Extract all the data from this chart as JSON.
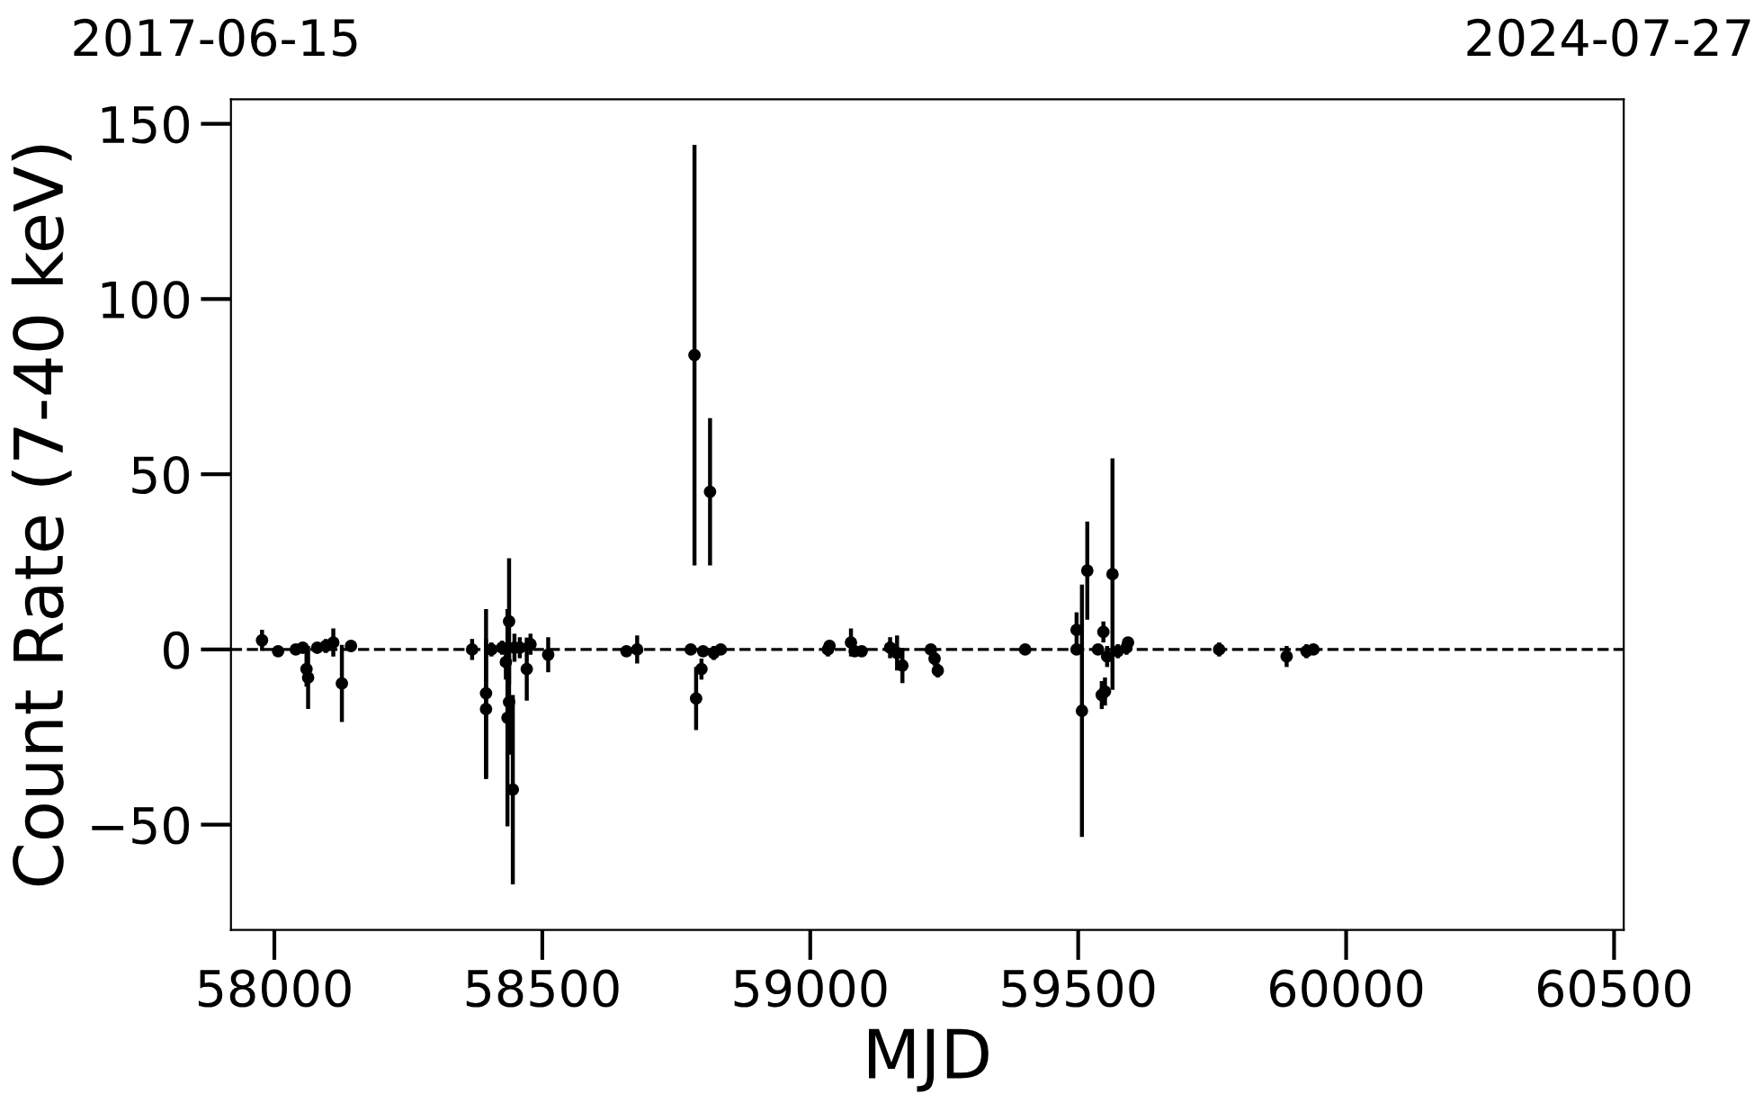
{
  "chart_data": {
    "type": "scatter",
    "xlabel": "MJD",
    "ylabel": "Count Rate (7-40 keV)",
    "xlim": [
      57919,
      60518
    ],
    "xticks": [
      58000,
      58500,
      59000,
      59500,
      60000,
      60500
    ],
    "ylim": [
      -80,
      157
    ],
    "yticks": [
      -50,
      0,
      50,
      100,
      150
    ],
    "annotations": [
      "2017-06-15",
      "2024-07-27"
    ],
    "marker": "circle",
    "grid": false,
    "ref_lines": [
      {
        "axis": "y",
        "value": 0,
        "label": null,
        "color": "#000000",
        "line_style": "dashed"
      }
    ],
    "series": [
      {
        "color": "#000000",
        "x": [
          57977,
          58007,
          58040,
          58053,
          58060,
          58063,
          58080,
          58096,
          58110,
          58126,
          58143,
          58369,
          58395,
          58395,
          58405,
          58425,
          58432,
          58435,
          58438,
          58445,
          58438,
          58448,
          58458,
          58471,
          58478,
          58511,
          58657,
          58677,
          58777,
          58784,
          58813,
          58787,
          58797,
          58800,
          58820,
          58833,
          59033,
          59036,
          59076,
          59083,
          59096,
          59149,
          59162,
          59172,
          59225,
          59232,
          59238,
          59401,
          59497,
          59497,
          59507,
          59517,
          59564,
          59547,
          59544,
          59550,
          59554,
          59537,
          59574,
          59590,
          59593,
          59763,
          59889,
          59926,
          59939
        ],
        "values": [
          2.6,
          -0.5,
          0,
          0.5,
          -5.6,
          -8,
          0.5,
          1,
          2,
          -9.7,
          1,
          0,
          -12.5,
          -17,
          0,
          0.5,
          -3.6,
          -19.5,
          8,
          -40,
          -15,
          0.5,
          0.5,
          -5.6,
          1.5,
          -1.5,
          -0.5,
          0,
          0,
          84,
          45,
          -14,
          -5.6,
          -0.5,
          -1,
          0,
          0,
          1,
          2,
          -0.5,
          -0.5,
          0.5,
          -1,
          -4.6,
          0,
          -2.6,
          -6,
          0,
          5.6,
          0,
          -17.5,
          22.5,
          21.5,
          5,
          -13,
          -12,
          -2,
          0,
          -0.5,
          0.5,
          2,
          0,
          -2,
          -0.5,
          0
        ],
        "errors": [
          3,
          1,
          1,
          1,
          5,
          9,
          1,
          2,
          4,
          11,
          1,
          3,
          24,
          20,
          2,
          2,
          5,
          31,
          18,
          27,
          15,
          4,
          3,
          9,
          3,
          5,
          1,
          4,
          1,
          60,
          21,
          9,
          3,
          1,
          2,
          1,
          2,
          1,
          4,
          1,
          1,
          3,
          5,
          5,
          1,
          2,
          2,
          1,
          5,
          1,
          36,
          14,
          33,
          3,
          4,
          4,
          3,
          1,
          2,
          2,
          1,
          2,
          3,
          2,
          1
        ]
      }
    ]
  }
}
